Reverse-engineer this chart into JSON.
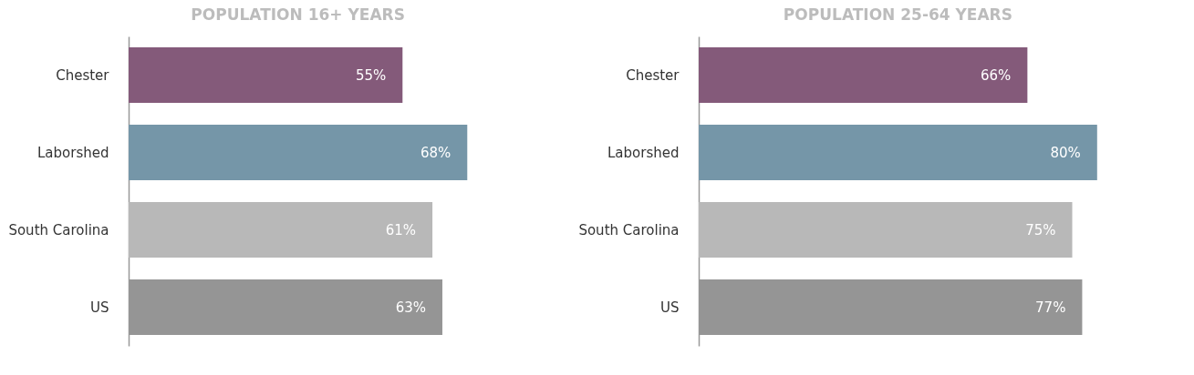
{
  "chart_data": [
    {
      "type": "bar",
      "orientation": "horizontal",
      "title": "POPULATION 16+ YEARS",
      "categories": [
        "Chester",
        "Laborshed",
        "South Carolina",
        "US"
      ],
      "values": [
        55,
        68,
        61,
        63
      ],
      "value_labels": [
        "55%",
        "68%",
        "61%",
        "63%"
      ],
      "colors": [
        "#845a7a",
        "#7596a8",
        "#b8b8b8",
        "#959595"
      ]
    },
    {
      "type": "bar",
      "orientation": "horizontal",
      "title": "POPULATION 25-64 YEARS",
      "categories": [
        "Chester",
        "Laborshed",
        "South Carolina",
        "US"
      ],
      "values": [
        66,
        80,
        75,
        77
      ],
      "value_labels": [
        "66%",
        "80%",
        "75%",
        "77%"
      ],
      "colors": [
        "#845a7a",
        "#7596a8",
        "#b8b8b8",
        "#959595"
      ]
    }
  ]
}
